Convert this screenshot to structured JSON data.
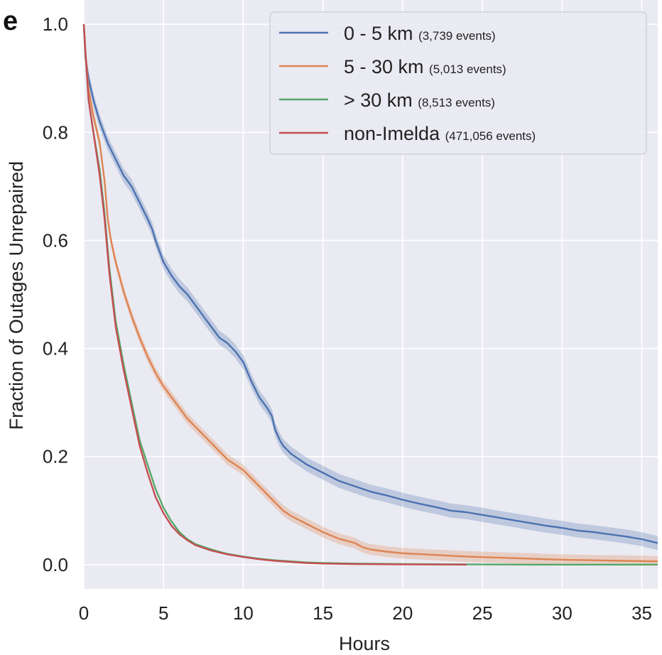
{
  "panel_label": "e",
  "chart_data": {
    "type": "line",
    "title": "",
    "xlabel": "Hours",
    "ylabel": "Fraction of Outages Unrepaired",
    "xlim": [
      0,
      36
    ],
    "ylim": [
      -0.045,
      1.045
    ],
    "xticks": [
      0,
      5,
      10,
      15,
      20,
      25,
      30,
      35
    ],
    "xtick_labels": [
      "0",
      "5",
      "10",
      "15",
      "20",
      "25",
      "30",
      "35"
    ],
    "yticks": [
      0.0,
      0.2,
      0.4,
      0.6,
      0.8,
      1.0
    ],
    "ytick_labels": [
      "0.0",
      "0.2",
      "0.4",
      "0.6",
      "0.8",
      "1.0"
    ],
    "grid": true,
    "legend_position": "top-right",
    "series": [
      {
        "name": "0 - 5 km",
        "count_label": "(3,739 events)",
        "color": "#4c72b0",
        "ci_half_width": 0.013,
        "x": [
          0,
          0.1,
          0.3,
          0.6,
          1,
          1.5,
          2,
          2.5,
          3,
          3.5,
          4,
          4.3,
          4.5,
          5,
          5.5,
          6,
          6.5,
          7,
          7.5,
          8,
          8.5,
          9,
          9.5,
          10,
          10.5,
          11,
          11.5,
          11.8,
          12,
          12.3,
          12.5,
          13,
          14,
          15,
          16,
          17,
          18,
          19,
          20,
          21,
          22,
          23,
          24,
          25,
          26,
          27,
          28,
          29,
          30,
          31,
          32,
          33,
          34,
          35,
          36
        ],
        "y": [
          1.0,
          0.94,
          0.9,
          0.86,
          0.82,
          0.78,
          0.75,
          0.72,
          0.7,
          0.67,
          0.64,
          0.62,
          0.6,
          0.56,
          0.535,
          0.515,
          0.5,
          0.48,
          0.46,
          0.44,
          0.42,
          0.41,
          0.395,
          0.375,
          0.34,
          0.31,
          0.29,
          0.275,
          0.25,
          0.23,
          0.22,
          0.205,
          0.185,
          0.17,
          0.155,
          0.145,
          0.135,
          0.128,
          0.12,
          0.113,
          0.107,
          0.1,
          0.097,
          0.092,
          0.087,
          0.082,
          0.077,
          0.072,
          0.068,
          0.063,
          0.06,
          0.056,
          0.052,
          0.047,
          0.04
        ]
      },
      {
        "name": "5 - 30 km",
        "count_label": "(5,013 events)",
        "color": "#dd8452",
        "ci_half_width": 0.01,
        "x": [
          0,
          0.1,
          0.3,
          0.6,
          1,
          1.3,
          1.5,
          1.7,
          2,
          2.5,
          3,
          3.5,
          4,
          4.5,
          5,
          5.5,
          6,
          6.5,
          7,
          7.5,
          8,
          8.5,
          9,
          9.5,
          10,
          10.5,
          11,
          11.5,
          12,
          12.5,
          13,
          14,
          15,
          16,
          17,
          17.5,
          18,
          19,
          20,
          22,
          24,
          26,
          28,
          30,
          32,
          34,
          36
        ],
        "y": [
          1.0,
          0.95,
          0.88,
          0.83,
          0.78,
          0.71,
          0.64,
          0.6,
          0.56,
          0.505,
          0.46,
          0.42,
          0.385,
          0.355,
          0.33,
          0.31,
          0.29,
          0.27,
          0.255,
          0.24,
          0.225,
          0.21,
          0.195,
          0.185,
          0.175,
          0.16,
          0.145,
          0.13,
          0.115,
          0.1,
          0.09,
          0.075,
          0.06,
          0.048,
          0.04,
          0.032,
          0.028,
          0.024,
          0.021,
          0.018,
          0.015,
          0.013,
          0.011,
          0.009,
          0.008,
          0.007,
          0.006
        ]
      },
      {
        "name": "> 30 km",
        "count_label": "(8,513 events)",
        "color": "#55a868",
        "ci_half_width": 0,
        "x": [
          0,
          0.1,
          0.3,
          0.6,
          1,
          1.3,
          1.6,
          2,
          2.5,
          3,
          3.5,
          4,
          4.5,
          5,
          5.5,
          6,
          6.5,
          7,
          8,
          9,
          10,
          11,
          12,
          13,
          14,
          15,
          17,
          20,
          24,
          28,
          32,
          36
        ],
        "y": [
          1.0,
          0.95,
          0.86,
          0.8,
          0.73,
          0.65,
          0.55,
          0.45,
          0.37,
          0.3,
          0.23,
          0.185,
          0.14,
          0.105,
          0.08,
          0.06,
          0.047,
          0.038,
          0.028,
          0.02,
          0.015,
          0.011,
          0.008,
          0.006,
          0.004,
          0.003,
          0.002,
          0.001,
          0.0005,
          0.0,
          0.0,
          0.0
        ]
      },
      {
        "name": "non-Imelda",
        "count_label": "(471,056 events)",
        "color": "#c44e52",
        "ci_half_width": 0,
        "x": [
          0,
          0.1,
          0.3,
          0.6,
          1,
          1.3,
          1.6,
          2,
          2.5,
          3,
          3.5,
          4,
          4.5,
          5,
          5.5,
          6,
          6.5,
          7,
          8,
          9,
          10,
          11,
          12,
          13,
          14,
          15,
          17,
          20,
          24
        ],
        "y": [
          1.0,
          0.95,
          0.86,
          0.8,
          0.72,
          0.64,
          0.54,
          0.44,
          0.36,
          0.29,
          0.22,
          0.17,
          0.125,
          0.095,
          0.072,
          0.056,
          0.045,
          0.036,
          0.026,
          0.019,
          0.014,
          0.01,
          0.007,
          0.005,
          0.003,
          0.002,
          0.001,
          0.0005,
          0.0
        ]
      }
    ]
  }
}
